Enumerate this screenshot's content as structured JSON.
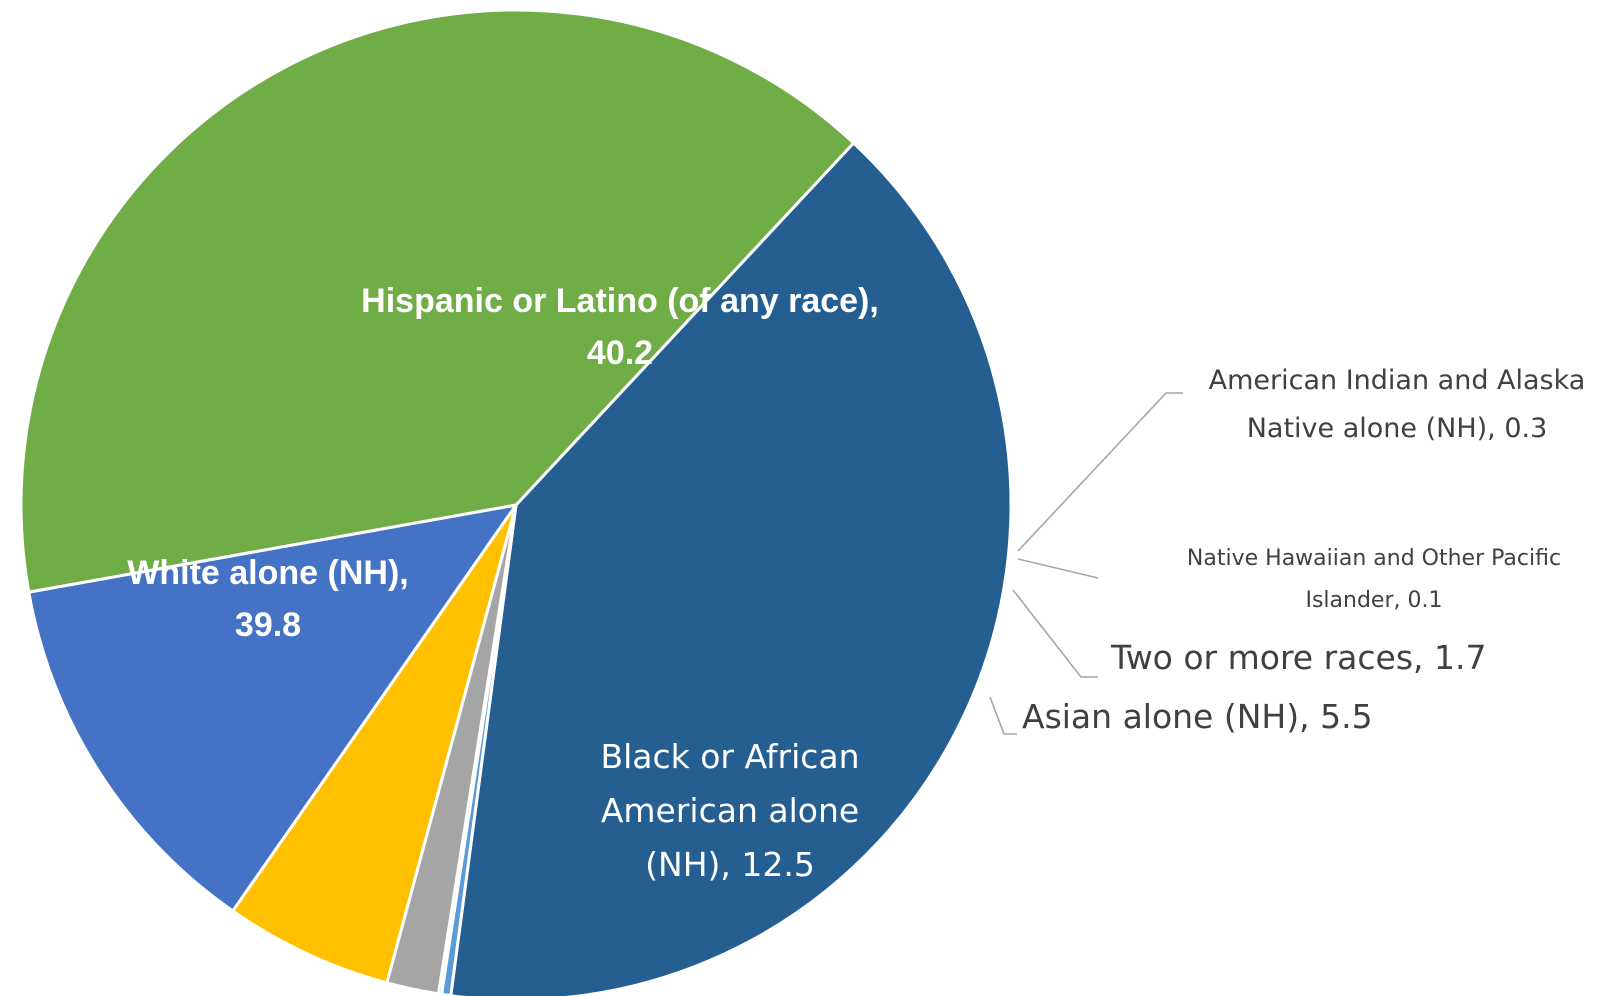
{
  "chart_data": {
    "type": "pie",
    "slices": [
      {
        "name": "Hispanic or Latino (of any race)",
        "value": 40.2,
        "color": "#255E91",
        "label_lines": [
          "Hispanic or Latino (of any race),",
          "40.2"
        ]
      },
      {
        "name": "American Indian and Alaska Native alone (NH)",
        "value": 0.3,
        "color": "#5B9BD5",
        "label_lines": [
          "American Indian and Alaska",
          "Native alone (NH), 0.3"
        ]
      },
      {
        "name": "Native Hawaiian and Other Pacific Islander",
        "value": 0.1,
        "color": "#264478",
        "label_lines": [
          "Native Hawaiian and Other Pacific",
          "Islander, 0.1"
        ]
      },
      {
        "name": "Two or more races",
        "value": 1.7,
        "color": "#A5A5A5",
        "label_lines": [
          "Two or more races, 1.7"
        ]
      },
      {
        "name": "Asian alone (NH)",
        "value": 5.5,
        "color": "#FFC000",
        "label_lines": [
          "Asian alone (NH), 5.5"
        ]
      },
      {
        "name": "Black or African American alone (NH)",
        "value": 12.5,
        "color": "#4472C4",
        "label_lines": [
          "Black or African",
          "American alone",
          "(NH), 12.5"
        ]
      },
      {
        "name": "White alone (NH)",
        "value": 39.8,
        "color": "#70AD47",
        "label_lines": [
          "White alone (NH),",
          "39.8"
        ]
      }
    ],
    "start_angle_deg": -47,
    "direction": "clockwise",
    "legend": "none"
  }
}
